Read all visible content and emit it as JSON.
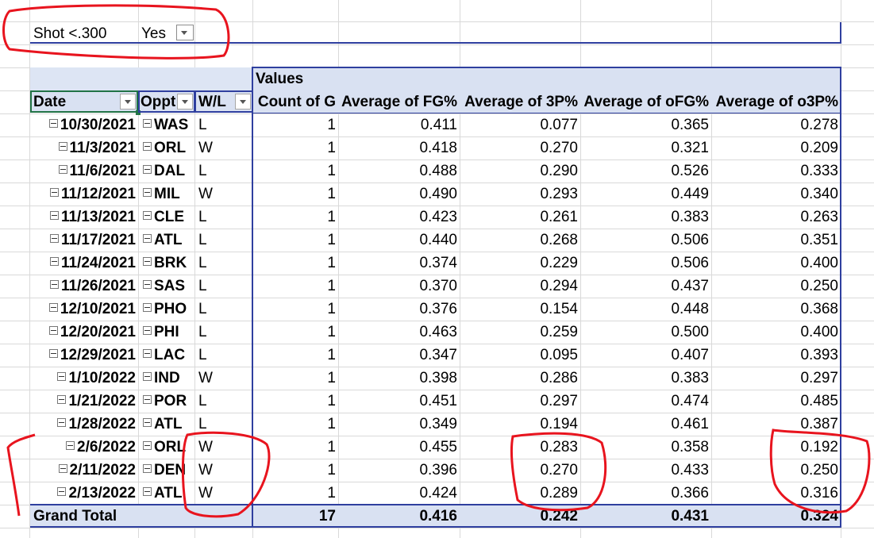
{
  "filter": {
    "label": "Shot <.300",
    "value": "Yes",
    "icon": "filter-icon"
  },
  "values_header": "Values",
  "row_headers": {
    "date": "Date",
    "oppt": "Oppt",
    "wl": "W/L"
  },
  "value_headers": [
    "Count of G",
    "Average of FG%",
    "Average of 3P%",
    "Average of oFG%",
    "Average of o3P%"
  ],
  "rows": [
    {
      "date": "10/30/2021",
      "oppt": "WAS",
      "wl": "L",
      "count": "1",
      "fg": "0.411",
      "tp": "0.077",
      "ofg": "0.365",
      "otp": "0.278"
    },
    {
      "date": "11/3/2021",
      "oppt": "ORL",
      "wl": "W",
      "count": "1",
      "fg": "0.418",
      "tp": "0.270",
      "ofg": "0.321",
      "otp": "0.209"
    },
    {
      "date": "11/6/2021",
      "oppt": "DAL",
      "wl": "L",
      "count": "1",
      "fg": "0.488",
      "tp": "0.290",
      "ofg": "0.526",
      "otp": "0.333"
    },
    {
      "date": "11/12/2021",
      "oppt": "MIL",
      "wl": "W",
      "count": "1",
      "fg": "0.490",
      "tp": "0.293",
      "ofg": "0.449",
      "otp": "0.340"
    },
    {
      "date": "11/13/2021",
      "oppt": "CLE",
      "wl": "L",
      "count": "1",
      "fg": "0.423",
      "tp": "0.261",
      "ofg": "0.383",
      "otp": "0.263"
    },
    {
      "date": "11/17/2021",
      "oppt": "ATL",
      "wl": "L",
      "count": "1",
      "fg": "0.440",
      "tp": "0.268",
      "ofg": "0.506",
      "otp": "0.351"
    },
    {
      "date": "11/24/2021",
      "oppt": "BRK",
      "wl": "L",
      "count": "1",
      "fg": "0.374",
      "tp": "0.229",
      "ofg": "0.506",
      "otp": "0.400"
    },
    {
      "date": "11/26/2021",
      "oppt": "SAS",
      "wl": "L",
      "count": "1",
      "fg": "0.370",
      "tp": "0.294",
      "ofg": "0.437",
      "otp": "0.250"
    },
    {
      "date": "12/10/2021",
      "oppt": "PHO",
      "wl": "L",
      "count": "1",
      "fg": "0.376",
      "tp": "0.154",
      "ofg": "0.448",
      "otp": "0.368"
    },
    {
      "date": "12/20/2021",
      "oppt": "PHI",
      "wl": "L",
      "count": "1",
      "fg": "0.463",
      "tp": "0.259",
      "ofg": "0.500",
      "otp": "0.400"
    },
    {
      "date": "12/29/2021",
      "oppt": "LAC",
      "wl": "L",
      "count": "1",
      "fg": "0.347",
      "tp": "0.095",
      "ofg": "0.407",
      "otp": "0.393"
    },
    {
      "date": "1/10/2022",
      "oppt": "IND",
      "wl": "W",
      "count": "1",
      "fg": "0.398",
      "tp": "0.286",
      "ofg": "0.383",
      "otp": "0.297"
    },
    {
      "date": "1/21/2022",
      "oppt": "POR",
      "wl": "L",
      "count": "1",
      "fg": "0.451",
      "tp": "0.297",
      "ofg": "0.474",
      "otp": "0.485"
    },
    {
      "date": "1/28/2022",
      "oppt": "ATL",
      "wl": "L",
      "count": "1",
      "fg": "0.349",
      "tp": "0.194",
      "ofg": "0.461",
      "otp": "0.387"
    },
    {
      "date": "2/6/2022",
      "oppt": "ORL",
      "wl": "W",
      "count": "1",
      "fg": "0.455",
      "tp": "0.283",
      "ofg": "0.358",
      "otp": "0.192"
    },
    {
      "date": "2/11/2022",
      "oppt": "DEN",
      "wl": "W",
      "count": "1",
      "fg": "0.396",
      "tp": "0.270",
      "ofg": "0.433",
      "otp": "0.250"
    },
    {
      "date": "2/13/2022",
      "oppt": "ATL",
      "wl": "W",
      "count": "1",
      "fg": "0.424",
      "tp": "0.289",
      "ofg": "0.366",
      "otp": "0.316"
    }
  ],
  "grand_total": {
    "label": "Grand Total",
    "count": "17",
    "fg": "0.416",
    "tp": "0.242",
    "ofg": "0.431",
    "otp": "0.324"
  },
  "colors": {
    "header_fill": "#d9e1f2",
    "pivot_border": "#2f3f9f",
    "annotation": "#e8141e",
    "gridline": "#d9d9d9"
  }
}
